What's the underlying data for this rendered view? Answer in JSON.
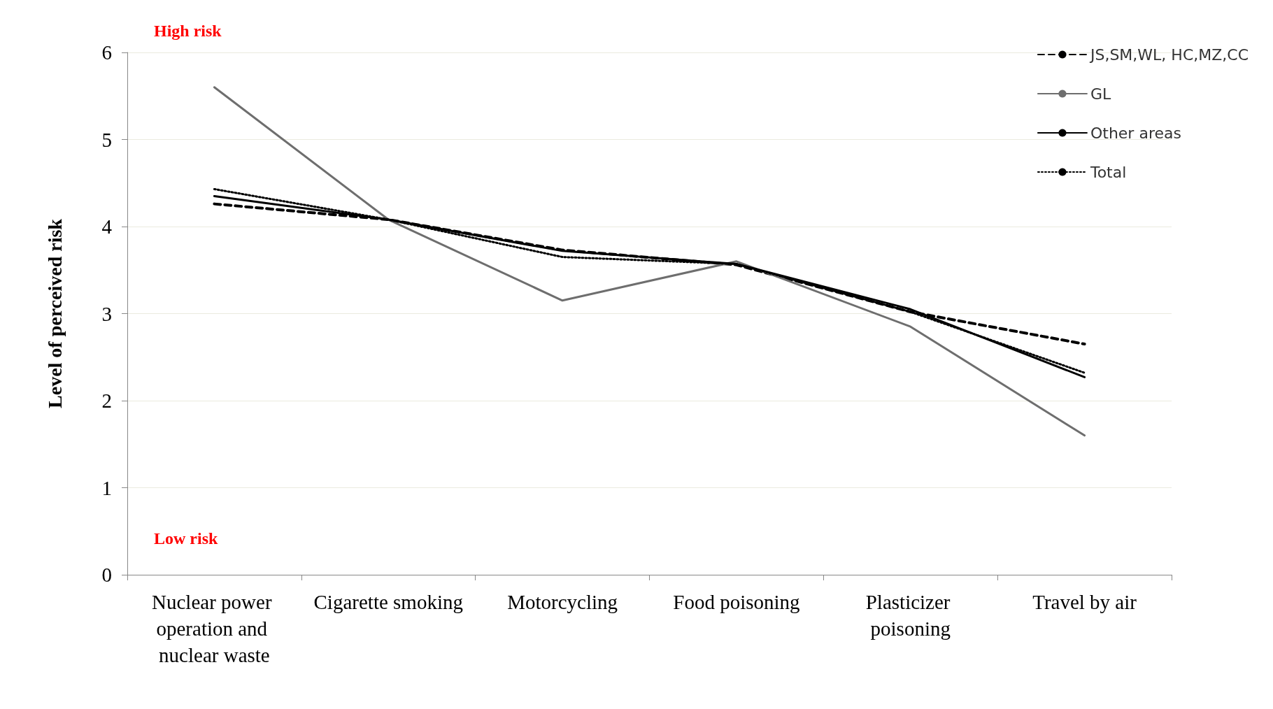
{
  "chart_data": {
    "type": "line",
    "ylabel": "Level of perceived risk",
    "categories": [
      "Nuclear power operation and nuclear waste",
      "Cigarette smoking",
      "Motorcycling",
      "Food poisoning",
      "Plasticizer poisoning",
      "Travel by air"
    ],
    "series": [
      {
        "name": "JS,SM,WL, HC,MZ,CC",
        "color": "#000000",
        "line_style": "dashed",
        "values": [
          4.26,
          4.08,
          3.73,
          3.56,
          3.02,
          2.65
        ]
      },
      {
        "name": "GL",
        "color": "#6e6e6e",
        "line_style": "solid",
        "values": [
          5.6,
          4.08,
          3.15,
          3.6,
          2.85,
          1.6
        ]
      },
      {
        "name": "Other areas",
        "color": "#000000",
        "line_style": "solid",
        "values": [
          4.35,
          4.08,
          3.72,
          3.57,
          3.05,
          2.27
        ]
      },
      {
        "name": "Total",
        "color": "#000000",
        "line_style": "dotted",
        "values": [
          4.43,
          4.08,
          3.65,
          3.57,
          3.02,
          2.32
        ]
      }
    ],
    "ylim": [
      0,
      6
    ],
    "yticks": [
      0,
      1,
      2,
      3,
      4,
      5,
      6
    ],
    "grid": "y",
    "legend": "top right",
    "marker": "none",
    "annotations": [
      "High risk",
      "Low risk"
    ]
  }
}
